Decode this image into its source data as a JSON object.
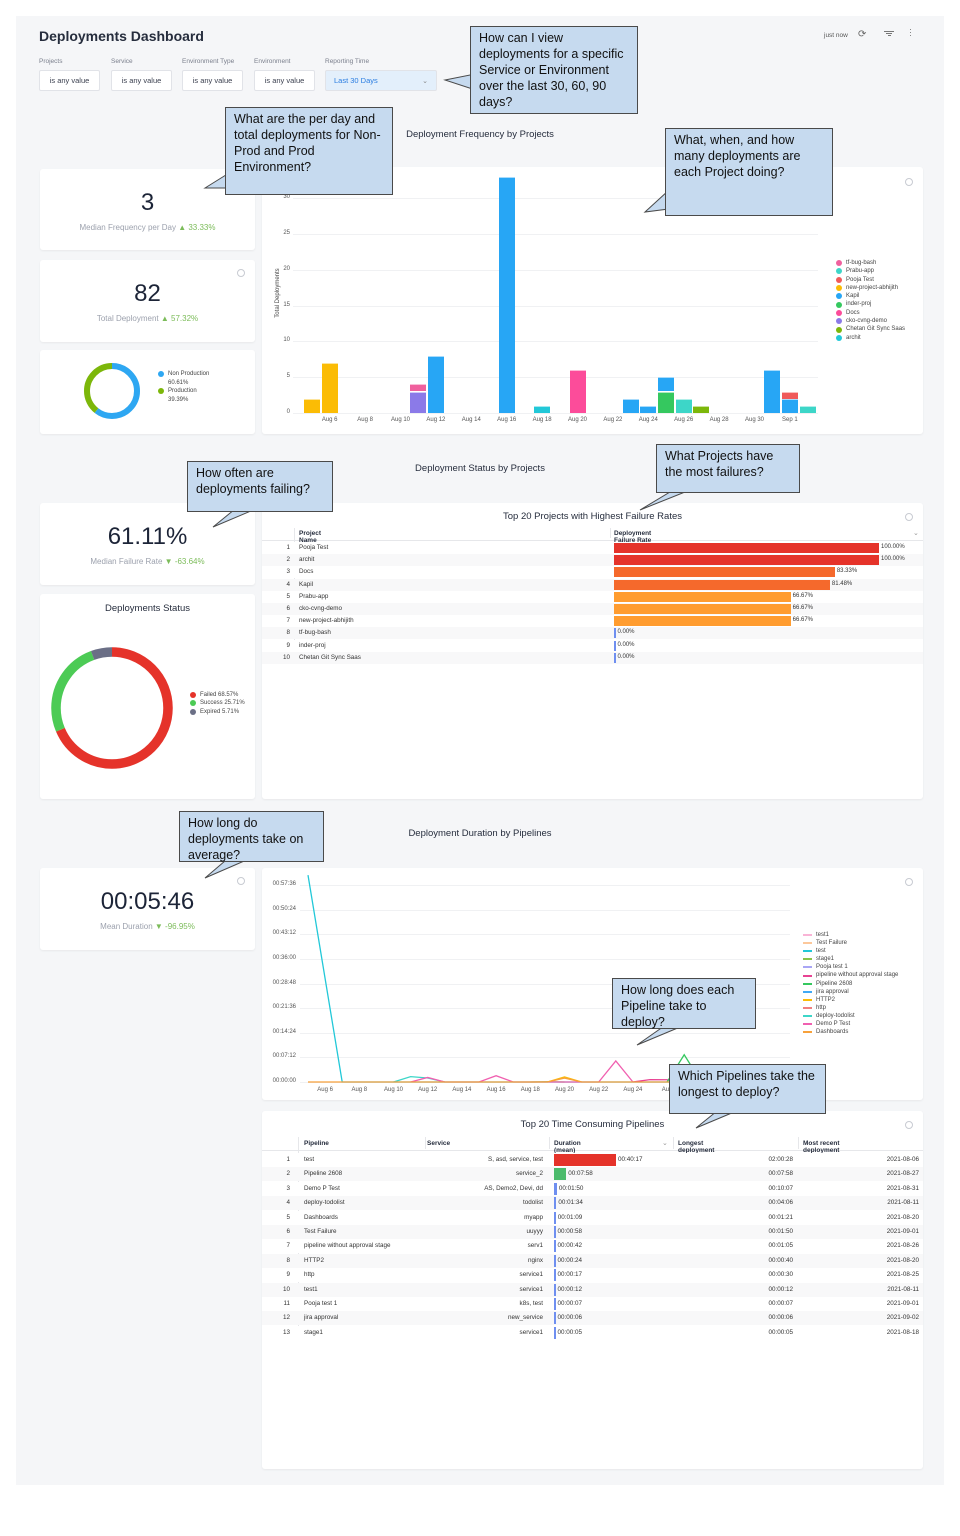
{
  "header": {
    "title": "Deployments Dashboard",
    "last_updated": "just now",
    "icons": [
      "refresh-icon",
      "filter-icon",
      "more-vertical-icon"
    ]
  },
  "filters": [
    {
      "label": "Projects",
      "value": "is any value"
    },
    {
      "label": "Service",
      "value": "is any value"
    },
    {
      "label": "Environment Type",
      "value": "is any value"
    },
    {
      "label": "Environment",
      "value": "is any value"
    },
    {
      "label": "Reporting Time",
      "value": "Last 30 Days",
      "selected": true
    }
  ],
  "sections": {
    "frequency": "Deployment Frequency by Projects",
    "status": "Deployment Status by Projects",
    "duration": "Deployment Duration by Pipelines"
  },
  "kpis": {
    "frequency": {
      "value": "3",
      "label": "Median Frequency per Day",
      "delta": "▲ 33.33%"
    },
    "total": {
      "value": "82",
      "label": "Total Deployment",
      "delta": "▲ 57.32%"
    },
    "failure": {
      "value": "61.11%",
      "label": "Median Failure Rate",
      "delta": "▼ -63.64%"
    },
    "duration": {
      "value": "00:05:46",
      "label": "Mean Duration",
      "delta": "▼ -96.95%"
    }
  },
  "env_donut": {
    "slices": [
      {
        "label": "Non Production",
        "pct_label": "60.61%",
        "value": 60.61,
        "color": "#2ea7f2"
      },
      {
        "label": "Production",
        "pct_label": "39.39%",
        "value": 39.39,
        "color": "#7cb70a"
      }
    ]
  },
  "status_donut": {
    "title": "Deployments Status",
    "slices": [
      {
        "label": "Failed 68.57%",
        "value": 68.57,
        "color": "#e5332a"
      },
      {
        "label": "Success 25.71%",
        "value": 25.71,
        "color": "#4ccb55"
      },
      {
        "label": "Expired 5.71%",
        "value": 5.71,
        "color": "#6b6f86"
      }
    ]
  },
  "chart_data": [
    {
      "type": "bar",
      "stacked": true,
      "ylabel": "Total Deployments",
      "ylim": [
        0,
        30
      ],
      "yticks": [
        "0",
        "5",
        "10",
        "15",
        "20",
        "25",
        "30"
      ],
      "xticks": [
        "Aug 6",
        "Aug 8",
        "Aug 10",
        "Aug 12",
        "Aug 14",
        "Aug 16",
        "Aug 18",
        "Aug 20",
        "Aug 22",
        "Aug 24",
        "Aug 26",
        "Aug 28",
        "Aug 30",
        "Sep 1"
      ],
      "grid": true,
      "legend_position": "right",
      "legend": [
        {
          "name": "tf-bug-bash",
          "color": "#f0609e"
        },
        {
          "name": "Prabu-app",
          "color": "#3dd6c8"
        },
        {
          "name": "Pooja Test",
          "color": "#f05a5a"
        },
        {
          "name": "new-project-abhijith",
          "color": "#fbbc05"
        },
        {
          "name": "Kapil",
          "color": "#27a6f5"
        },
        {
          "name": "inder-proj",
          "color": "#35c85f"
        },
        {
          "name": "Docs",
          "color": "#fc4c9a"
        },
        {
          "name": "cko-cvng-demo",
          "color": "#8b7ae8"
        },
        {
          "name": "Chetan Git Sync Saas",
          "color": "#7cb70a"
        },
        {
          "name": "archit",
          "color": "#22c8d8"
        }
      ],
      "bars": [
        {
          "date": "2021-08-05",
          "stack": [
            [
              "new-project-abhijith",
              2
            ]
          ]
        },
        {
          "date": "2021-08-06",
          "stack": [
            [
              "new-project-abhijith",
              7
            ]
          ]
        },
        {
          "date": "2021-08-11",
          "stack": [
            [
              "cko-cvng-demo",
              3
            ],
            [
              "tf-bug-bash",
              1
            ]
          ]
        },
        {
          "date": "2021-08-12",
          "stack": [
            [
              "Kapil",
              8
            ]
          ]
        },
        {
          "date": "2021-08-16",
          "stack": [
            [
              "Kapil",
              33
            ]
          ]
        },
        {
          "date": "2021-08-18",
          "stack": [
            [
              "archit",
              1
            ]
          ]
        },
        {
          "date": "2021-08-20",
          "stack": [
            [
              "Docs",
              6
            ]
          ]
        },
        {
          "date": "2021-08-23",
          "stack": [
            [
              "Kapil",
              2
            ]
          ]
        },
        {
          "date": "2021-08-24",
          "stack": [
            [
              "Kapil",
              1
            ]
          ]
        },
        {
          "date": "2021-08-25",
          "stack": [
            [
              "inder-proj",
              3
            ],
            [
              "Kapil",
              2
            ]
          ]
        },
        {
          "date": "2021-08-26",
          "stack": [
            [
              "Prabu-app",
              2
            ]
          ]
        },
        {
          "date": "2021-08-27",
          "stack": [
            [
              "Chetan Git Sync Saas",
              1
            ]
          ]
        },
        {
          "date": "2021-08-31",
          "stack": [
            [
              "Kapil",
              6
            ]
          ]
        },
        {
          "date": "2021-09-01",
          "stack": [
            [
              "Kapil",
              2
            ],
            [
              "Pooja Test",
              1
            ]
          ]
        },
        {
          "date": "2021-09-02",
          "stack": [
            [
              "Prabu-app",
              1
            ]
          ]
        }
      ]
    },
    {
      "type": "line",
      "yticks": [
        "00:00:00",
        "00:07:12",
        "00:14:24",
        "00:21:36",
        "00:28:48",
        "00:36:00",
        "00:43:12",
        "00:50:24",
        "00:57:36"
      ],
      "xticks": [
        "Aug 6",
        "Aug 8",
        "Aug 10",
        "Aug 12",
        "Aug 14",
        "Aug 16",
        "Aug 18",
        "Aug 20",
        "Aug 22",
        "Aug 24",
        "Aug"
      ],
      "grid": true,
      "legend_position": "right",
      "series": [
        {
          "name": "test1",
          "color": "#f9b4d6",
          "points": []
        },
        {
          "name": "Test Failure",
          "color": "#fcc89b",
          "points": []
        },
        {
          "name": "test",
          "color": "#22c8d8",
          "points": [
            [
              "2021-08-05",
              "01:00:30"
            ],
            [
              "2021-08-07",
              "00:00:00"
            ],
            [
              "2021-08-27",
              "00:00:00"
            ]
          ]
        },
        {
          "name": "stage1",
          "color": "#8bc34a",
          "points": [
            [
              "2021-08-18",
              "00:00:00"
            ],
            [
              "2021-08-19",
              "00:00:05"
            ],
            [
              "2021-08-20",
              "00:00:00"
            ]
          ]
        },
        {
          "name": "Pooja test 1",
          "color": "#a9a6f5",
          "points": []
        },
        {
          "name": "pipeline without approval stage",
          "color": "#e84393",
          "points": [
            [
              "2021-08-24",
              "00:00:00"
            ],
            [
              "2021-08-25",
              "00:00:42"
            ],
            [
              "2021-08-26",
              "00:00:40"
            ],
            [
              "2021-08-27",
              "00:00:00"
            ]
          ]
        },
        {
          "name": "Pipeline 2608",
          "color": "#35c85f",
          "points": [
            [
              "2021-08-26",
              "00:00:00"
            ],
            [
              "2021-08-27",
              "00:07:58"
            ],
            [
              "2021-08-28",
              "00:00:00"
            ]
          ]
        },
        {
          "name": "jira approval",
          "color": "#3fa9f5",
          "points": []
        },
        {
          "name": "HTTP2",
          "color": "#fbbc05",
          "points": [
            [
              "2021-08-19",
              "00:00:00"
            ],
            [
              "2021-08-20",
              "00:01:30"
            ],
            [
              "2021-08-21",
              "00:00:00"
            ]
          ]
        },
        {
          "name": "http",
          "color": "#f08080",
          "points": []
        },
        {
          "name": "deploy-todolist",
          "color": "#3dd6c8",
          "points": [
            [
              "2021-08-10",
              "00:00:00"
            ],
            [
              "2021-08-11",
              "00:01:34"
            ],
            [
              "2021-08-12",
              "00:01:10"
            ],
            [
              "2021-08-13",
              "00:00:00"
            ]
          ]
        },
        {
          "name": "Demo P Test",
          "color": "#f060b0",
          "points": [
            [
              "2021-08-11",
              "00:00:00"
            ],
            [
              "2021-08-12",
              "00:01:20"
            ],
            [
              "2021-08-13",
              "00:00:00"
            ],
            [
              "2021-08-15",
              "00:00:00"
            ],
            [
              "2021-08-16",
              "00:01:50"
            ],
            [
              "2021-08-17",
              "00:00:00"
            ],
            [
              "2021-08-22",
              "00:00:00"
            ],
            [
              "2021-08-23",
              "00:06:10"
            ],
            [
              "2021-08-24",
              "00:00:00"
            ]
          ]
        },
        {
          "name": "Dashboards",
          "color": "#f7a13b",
          "points": [
            [
              "2021-08-05",
              "00:00:00"
            ],
            [
              "2021-08-19",
              "00:00:00"
            ],
            [
              "2021-08-20",
              "00:01:09"
            ],
            [
              "2021-08-21",
              "00:00:00"
            ],
            [
              "2021-08-27",
              "00:00:00"
            ]
          ]
        }
      ]
    }
  ],
  "failure_table": {
    "title": "Top 20 Projects with Highest Failure Rates",
    "columns": [
      "Project Name",
      "Deployment Failure Rate"
    ],
    "rows": [
      {
        "rank": "1",
        "name": "Pooja Test",
        "rate": 100.0,
        "label": "100.00%",
        "color": "#e5332a"
      },
      {
        "rank": "2",
        "name": "archit",
        "rate": 100.0,
        "label": "100.00%",
        "color": "#e5332a"
      },
      {
        "rank": "3",
        "name": "Docs",
        "rate": 83.33,
        "label": "83.33%",
        "color": "#f5692c"
      },
      {
        "rank": "4",
        "name": "Kapil",
        "rate": 81.48,
        "label": "81.48%",
        "color": "#f5692c"
      },
      {
        "rank": "5",
        "name": "Prabu-app",
        "rate": 66.67,
        "label": "66.67%",
        "color": "#ff9c2f"
      },
      {
        "rank": "6",
        "name": "cko-cvng-demo",
        "rate": 66.67,
        "label": "66.67%",
        "color": "#ff9c2f"
      },
      {
        "rank": "7",
        "name": "new-project-abhijith",
        "rate": 66.67,
        "label": "66.67%",
        "color": "#ff9c2f"
      },
      {
        "rank": "8",
        "name": "tf-bug-bash",
        "rate": 0,
        "label": "0.00%",
        "color": "#6f8ff0"
      },
      {
        "rank": "9",
        "name": "inder-proj",
        "rate": 0,
        "label": "0.00%",
        "color": "#6f8ff0"
      },
      {
        "rank": "10",
        "name": "Chetan Git Sync Saas",
        "rate": 0,
        "label": "0.00%",
        "color": "#6f8ff0"
      }
    ]
  },
  "pipeline_table": {
    "title": "Top 20 Time Consuming Pipelines",
    "columns": [
      "Pipeline",
      "Service",
      "Duration (mean)",
      "Longest deployment",
      "Most recent deployment"
    ],
    "rows": [
      {
        "rank": "1",
        "pipeline": "test",
        "service": "S, asd, service, test",
        "mean": "00:40:17",
        "longest": "02:00:28",
        "recent": "2021-08-06",
        "color": "#e5332a"
      },
      {
        "rank": "2",
        "pipeline": "Pipeline 2608",
        "service": "service_2",
        "mean": "00:07:58",
        "longest": "00:07:58",
        "recent": "2021-08-27",
        "color": "#4cbb6c"
      },
      {
        "rank": "3",
        "pipeline": "Demo P Test",
        "service": "AS, Demo2, Devi, dd",
        "mean": "00:01:50",
        "longest": "00:10:07",
        "recent": "2021-08-31",
        "color": "#6f8ff0"
      },
      {
        "rank": "4",
        "pipeline": "deploy-todolist",
        "service": "todolist",
        "mean": "00:01:34",
        "longest": "00:04:06",
        "recent": "2021-08-11",
        "color": "#6f8ff0"
      },
      {
        "rank": "5",
        "pipeline": "Dashboards",
        "service": "myapp",
        "mean": "00:01:09",
        "longest": "00:01:21",
        "recent": "2021-08-20",
        "color": "#6f8ff0"
      },
      {
        "rank": "6",
        "pipeline": "Test Failure",
        "service": "uuyyy",
        "mean": "00:00:58",
        "longest": "00:01:50",
        "recent": "2021-09-01",
        "color": "#6f8ff0"
      },
      {
        "rank": "7",
        "pipeline": "pipeline without approval stage",
        "service": "serv1",
        "mean": "00:00:42",
        "longest": "00:01:05",
        "recent": "2021-08-26",
        "color": "#6f8ff0"
      },
      {
        "rank": "8",
        "pipeline": "HTTP2",
        "service": "nginx",
        "mean": "00:00:24",
        "longest": "00:00:40",
        "recent": "2021-08-20",
        "color": "#6f8ff0"
      },
      {
        "rank": "9",
        "pipeline": "http",
        "service": "service1",
        "mean": "00:00:17",
        "longest": "00:00:30",
        "recent": "2021-08-25",
        "color": "#6f8ff0"
      },
      {
        "rank": "10",
        "pipeline": "test1",
        "service": "service1",
        "mean": "00:00:12",
        "longest": "00:00:12",
        "recent": "2021-08-11",
        "color": "#6f8ff0"
      },
      {
        "rank": "11",
        "pipeline": "Pooja test 1",
        "service": "k8s, test",
        "mean": "00:00:07",
        "longest": "00:00:07",
        "recent": "2021-09-01",
        "color": "#6f8ff0"
      },
      {
        "rank": "12",
        "pipeline": "jira approval",
        "service": "new_service",
        "mean": "00:00:06",
        "longest": "00:00:06",
        "recent": "2021-09-02",
        "color": "#6f8ff0"
      },
      {
        "rank": "13",
        "pipeline": "stage1",
        "service": "service1",
        "mean": "00:00:05",
        "longest": "00:00:05",
        "recent": "2021-08-18",
        "color": "#6f8ff0"
      }
    ]
  },
  "callouts": [
    "How can I view deployments for a specific Service or Environment over the last 30, 60, 90 days?",
    "What are the per day and total deployments for Non-Prod and Prod Environment?",
    "What, when, and how many deployments are each Project doing?",
    "How often are deployments failing?",
    "What Projects have the most failures?",
    "How long do deployments take on average?",
    "How long does each Pipeline take to deploy?",
    "Which Pipelines take the longest to deploy?"
  ]
}
